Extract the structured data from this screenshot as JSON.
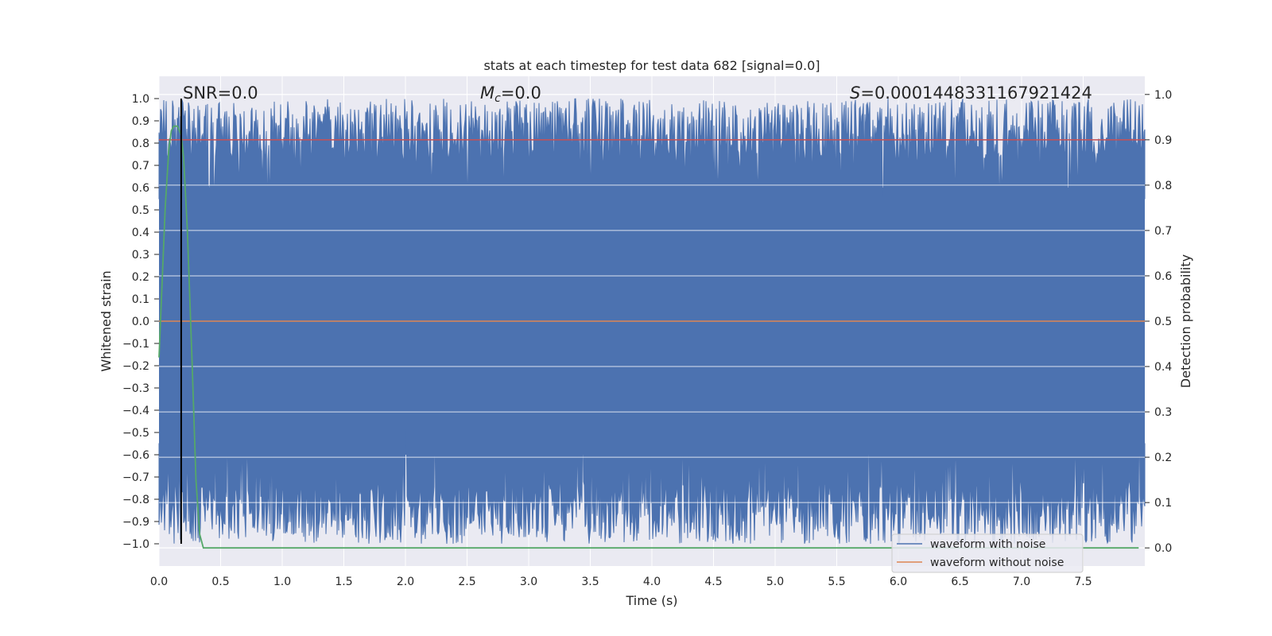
{
  "chart_data": {
    "type": "line",
    "title": "stats at each timestep for test data 682 [signal=0.0]",
    "xlabel": "Time (s)",
    "ylabel": "Whitened strain",
    "y2label": "Detection probability",
    "xlim": [
      0.0,
      8.0
    ],
    "ylim": [
      -1.1,
      1.1
    ],
    "y2lim": [
      -0.04,
      1.04
    ],
    "x_ticks": [
      "0.0",
      "0.5",
      "1.0",
      "1.5",
      "2.0",
      "2.5",
      "3.0",
      "3.5",
      "4.0",
      "4.5",
      "5.0",
      "5.5",
      "6.0",
      "6.5",
      "7.0",
      "7.5"
    ],
    "y_ticks": [
      "1.0",
      "0.9",
      "0.8",
      "0.7",
      "0.6",
      "0.5",
      "0.4",
      "0.3",
      "0.2",
      "0.1",
      "0.0",
      "−0.1",
      "−0.2",
      "−0.3",
      "−0.4",
      "−0.5",
      "−0.6",
      "−0.7",
      "−0.8",
      "−0.9",
      "−1.0"
    ],
    "y2_ticks": [
      "1.0",
      "0.9",
      "0.8",
      "0.7",
      "0.6",
      "0.5",
      "0.4",
      "0.3",
      "0.2",
      "0.1",
      "0.0"
    ],
    "grid": true,
    "legend_position": "lower-right",
    "annotations": {
      "snr": "SNR=0.0",
      "mc_symbol": "M",
      "mc_sub": "c",
      "mc_value": "=0.0",
      "s_symbol": "S",
      "s_value": "=0.0001448331167921424"
    },
    "series": [
      {
        "name": "waveform with noise",
        "color": "#4c72b0",
        "description_values": "dense noise filling -1.0 to 1.0 across 0–8 s"
      },
      {
        "name": "waveform without noise",
        "color": "#dd8452",
        "values_y": 0.0
      },
      {
        "color": "#55a868",
        "axis": "right",
        "x": [
          0.0,
          0.05,
          0.08,
          0.1,
          0.12,
          0.15,
          0.18,
          0.2,
          0.23,
          0.27,
          0.3,
          0.33,
          0.36,
          7.95
        ],
        "y": [
          0.42,
          0.75,
          0.88,
          0.92,
          0.93,
          0.93,
          0.91,
          0.86,
          0.7,
          0.4,
          0.15,
          0.03,
          0.0,
          0.0
        ]
      },
      {
        "color": "#c44e52",
        "axis": "right",
        "values_y": 0.9
      },
      {
        "color": "#000000",
        "axis": "vline",
        "x": 0.18
      }
    ]
  }
}
